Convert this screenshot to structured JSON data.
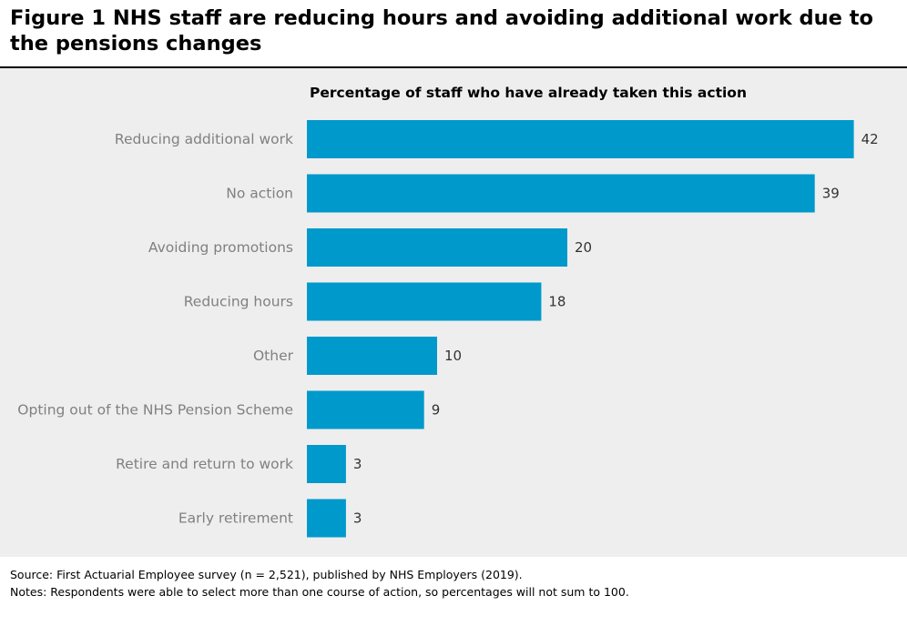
{
  "figure": {
    "title": "Figure 1 NHS staff are reducing hours and avoiding additional work due to the pensions changes"
  },
  "chart_data": {
    "type": "bar",
    "orientation": "horizontal",
    "title": "Percentage of staff who have already taken this action",
    "xlabel": "",
    "ylabel": "",
    "categories": [
      "Reducing additional work",
      "No action",
      "Avoiding promotions",
      "Reducing hours",
      "Other",
      "Opting out of the NHS Pension Scheme",
      "Retire and return to work",
      "Early retirement"
    ],
    "values": [
      42,
      39,
      20,
      18,
      10,
      9,
      3,
      3
    ],
    "xlim": [
      0,
      45
    ],
    "grid": false,
    "bar_color": "#0099cc",
    "label_color": "#808080",
    "value_label_color": "#333333"
  },
  "footer": {
    "source": "Source: First Actuarial Employee survey (n = 2,521), published by NHS Employers (2019).",
    "notes": "Notes: Respondents were able to select more than one course of action, so percentages will not sum to 100."
  }
}
